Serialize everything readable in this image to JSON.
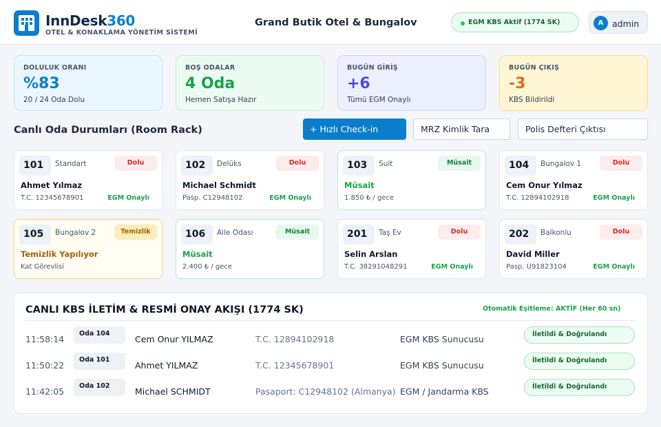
{
  "header": {
    "brand_name": "InnDesk",
    "brand_number": "360",
    "brand_subtitle": "OTEL & KONAKLAMA YÖNETİM SİSTEMİ",
    "hotel_name": "Grand Butik Otel & Bungalov",
    "kbs_status": "EGM KBS Aktif (1774 SK)",
    "user_initial": "A",
    "user_name": "admin"
  },
  "stats": [
    {
      "label": "DOLULUK ORANI",
      "value": "%83",
      "sub": "20 / 24 Oda Dolu"
    },
    {
      "label": "BOŞ ODALAR",
      "value": "4 Oda",
      "sub": "Hemen Satışa Hazır"
    },
    {
      "label": "BUGÜN GİRİŞ",
      "value": "+6",
      "sub": "Tümü EGM Onaylı"
    },
    {
      "label": "BUGÜN ÇIKIŞ",
      "value": "-3",
      "sub": "KBS Bildirildi"
    }
  ],
  "rack": {
    "title": "Canlı Oda Durumları (Room Rack)",
    "actions": {
      "checkin": "+ Hızlı Check-in",
      "mrz": "MRZ Kimlik Tara",
      "polis": "Polis Defteri Çıktısı"
    },
    "rooms": [
      {
        "no": "101",
        "type": "Standart",
        "status": "Dolu",
        "guest": "Ahmet Yılmaz",
        "id": "T.C. 12345678901",
        "egm": "EGM Onaylı"
      },
      {
        "no": "102",
        "type": "Delüks",
        "status": "Dolu",
        "guest": "Michael Schmidt",
        "id": "Pasp. C12948102",
        "egm": "EGM Onaylı"
      },
      {
        "no": "103",
        "type": "Suit",
        "status": "Müsait",
        "guest": "Müsait",
        "id": "1.850 ₺ / gece",
        "egm": ""
      },
      {
        "no": "104",
        "type": "Bungalov 1",
        "status": "Dolu",
        "guest": "Cem Onur Yılmaz",
        "id": "T.C. 12894102918",
        "egm": "EGM Onaylı"
      },
      {
        "no": "105",
        "type": "Bungalov 2",
        "status": "Temizlik",
        "guest": "Temizlik Yapılıyor",
        "id": "Kat Görevlisi",
        "egm": ""
      },
      {
        "no": "106",
        "type": "Aile Odası",
        "status": "Müsait",
        "guest": "Müsait",
        "id": "2.400 ₺ / gece",
        "egm": ""
      },
      {
        "no": "201",
        "type": "Taş Ev",
        "status": "Dolu",
        "guest": "Selin Arslan",
        "id": "T.C. 38291048291",
        "egm": "EGM Onaylı"
      },
      {
        "no": "202",
        "type": "Balkonlu",
        "status": "Dolu",
        "guest": "David Miller",
        "id": "Pasp. U91823104",
        "egm": "EGM Onaylı"
      }
    ]
  },
  "kbs_log": {
    "title": "CANLI KBS İLETİM & RESMİ ONAY AKIŞI (1774 SK)",
    "sync": "Otomatik Eşitleme: AKTİF (Her 60 sn)",
    "rows": [
      {
        "time": "11:58:14",
        "room": "Oda 104",
        "name": "Cem Onur YILMAZ",
        "doc": "T.C. 12894102918",
        "server": "EGM KBS Sunucusu",
        "status": "İletildi & Doğrulandı"
      },
      {
        "time": "11:50:22",
        "room": "Oda 101",
        "name": "Ahmet YILMAZ",
        "doc": "T.C. 12345678901",
        "server": "EGM KBS Sunucusu",
        "status": "İletildi & Doğrulandı"
      },
      {
        "time": "11:42:05",
        "room": "Oda 102",
        "name": "Michael SCHMIDT",
        "doc": "Pasaport: C12948102 (Almanya)",
        "server": "EGM / Jandarma KBS",
        "status": "İletildi & Doğrulandı"
      }
    ]
  },
  "colors": {
    "primary": "#0b7ecb",
    "success": "#16a34a",
    "danger": "#dc2626",
    "warning": "#ea6a0c",
    "indigo": "#4f46e5"
  }
}
